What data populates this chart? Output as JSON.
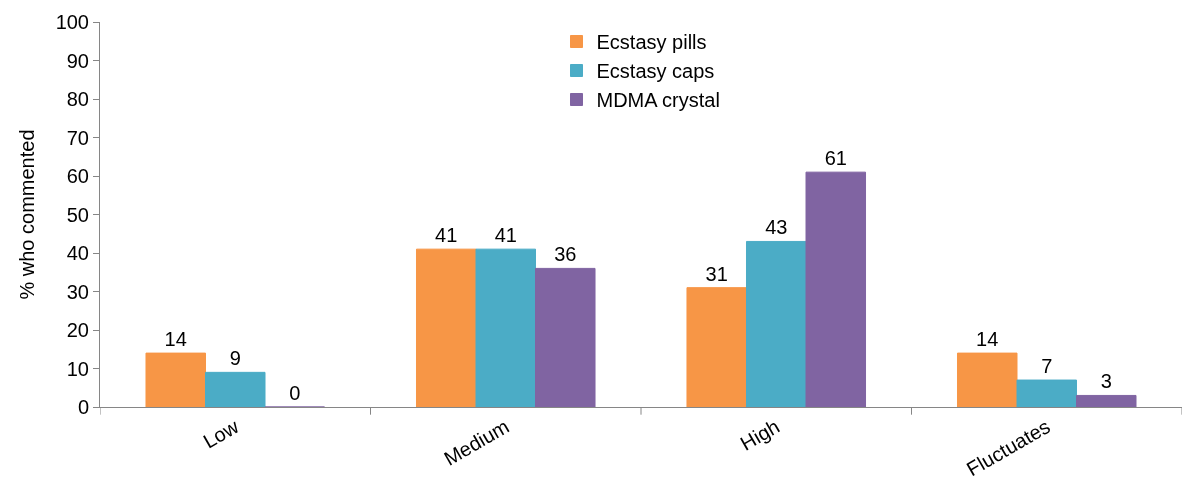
{
  "chart_data": {
    "type": "bar",
    "ylabel": "% who commented",
    "categories": [
      "Low",
      "Medium",
      "High",
      "Fluctuates"
    ],
    "series": [
      {
        "name": "Ecstasy pills",
        "color": "#f79646",
        "values": [
          14,
          41,
          31,
          14
        ]
      },
      {
        "name": "Ecstasy caps",
        "color": "#4bacc6",
        "values": [
          9,
          41,
          43,
          7
        ]
      },
      {
        "name": "MDMA crystal",
        "color": "#8064a2",
        "values": [
          0,
          36,
          61,
          3
        ]
      }
    ],
    "ylim": [
      0,
      100
    ],
    "yticks": [
      0,
      10,
      20,
      30,
      40,
      50,
      60,
      70,
      80,
      90,
      100
    ],
    "legend": "top",
    "data_labels": true
  }
}
